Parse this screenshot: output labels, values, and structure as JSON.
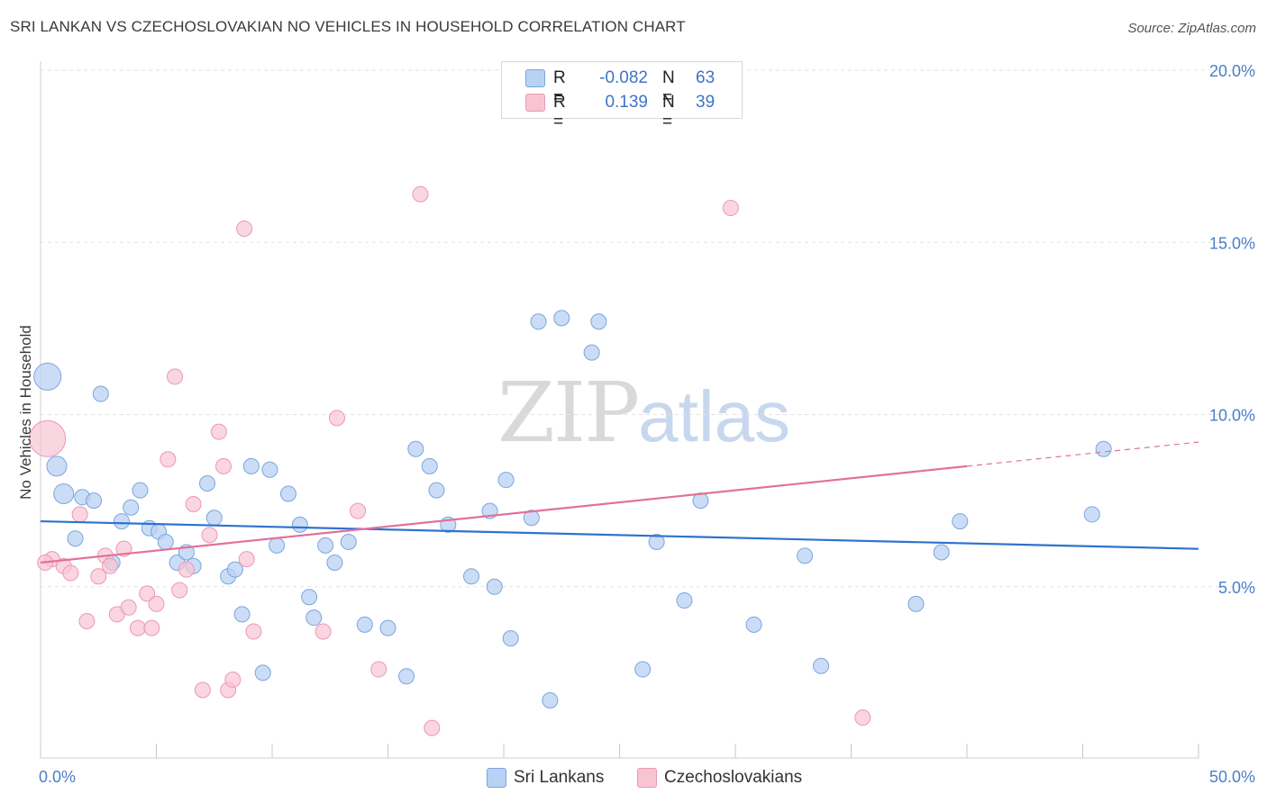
{
  "title": "SRI LANKAN VS CZECHOSLOVAKIAN NO VEHICLES IN HOUSEHOLD CORRELATION CHART",
  "source": "Source: ZipAtlas.com",
  "watermark": {
    "zip": "ZIP",
    "atlas": "atlas"
  },
  "colors": {
    "blue_fill": "#b9d1f3",
    "blue_stroke": "#7aa5de",
    "blue_line": "#2e72cf",
    "pink_fill": "#f8c4d4",
    "pink_stroke": "#ec98b3",
    "pink_line": "#e2709a",
    "grid": "#e2e2e2",
    "tick_text": "#4a7fc9"
  },
  "legend_top": [
    {
      "r_label": "R =",
      "r_value": "-0.082",
      "n_label": "N =",
      "n_value": "63"
    },
    {
      "r_label": "R =",
      "r_value": "0.139",
      "n_label": "N =",
      "n_value": "39"
    }
  ],
  "legend_bottom": [
    "Sri Lankans",
    "Czechoslovakians"
  ],
  "chart_data": {
    "type": "scatter",
    "title": "SRI LANKAN VS CZECHOSLOVAKIAN NO VEHICLES IN HOUSEHOLD CORRELATION CHART",
    "ylabel": "No Vehicles in Household",
    "xlabel": "",
    "xlim": [
      0,
      50
    ],
    "ylim": [
      0,
      20.5
    ],
    "x_tick_labels": [
      "0.0%",
      "50.0%"
    ],
    "y_ticks": [
      5,
      10,
      15,
      20
    ],
    "y_tick_labels": [
      "5.0%",
      "10.0%",
      "15.0%",
      "20.0%"
    ],
    "grid": true,
    "legend_position": "bottom",
    "series": [
      {
        "name": "Sri Lankans",
        "trend": {
          "x": [
            0,
            50
          ],
          "y": [
            6.9,
            6.1
          ]
        },
        "points": [
          [
            0.3,
            11.1
          ],
          [
            0.7,
            8.5
          ],
          [
            1.0,
            7.7
          ],
          [
            1.5,
            6.4
          ],
          [
            1.8,
            7.6
          ],
          [
            2.3,
            7.5
          ],
          [
            2.6,
            10.6
          ],
          [
            3.1,
            5.7
          ],
          [
            3.5,
            6.9
          ],
          [
            3.9,
            7.3
          ],
          [
            4.3,
            7.8
          ],
          [
            4.7,
            6.7
          ],
          [
            5.1,
            6.6
          ],
          [
            5.4,
            6.3
          ],
          [
            5.9,
            5.7
          ],
          [
            6.3,
            6.0
          ],
          [
            6.6,
            5.6
          ],
          [
            7.2,
            8.0
          ],
          [
            7.5,
            7.0
          ],
          [
            8.1,
            5.3
          ],
          [
            8.4,
            5.5
          ],
          [
            8.7,
            4.2
          ],
          [
            9.1,
            8.5
          ],
          [
            9.6,
            2.5
          ],
          [
            9.9,
            8.4
          ],
          [
            10.2,
            6.2
          ],
          [
            10.7,
            7.7
          ],
          [
            11.2,
            6.8
          ],
          [
            11.6,
            4.7
          ],
          [
            11.8,
            4.1
          ],
          [
            12.3,
            6.2
          ],
          [
            12.7,
            5.7
          ],
          [
            13.3,
            6.3
          ],
          [
            14.0,
            3.9
          ],
          [
            15.0,
            3.8
          ],
          [
            15.8,
            2.4
          ],
          [
            16.2,
            9.0
          ],
          [
            16.8,
            8.5
          ],
          [
            17.1,
            7.8
          ],
          [
            17.6,
            6.8
          ],
          [
            18.6,
            5.3
          ],
          [
            19.4,
            7.2
          ],
          [
            19.6,
            5.0
          ],
          [
            20.1,
            8.1
          ],
          [
            20.3,
            3.5
          ],
          [
            21.2,
            7.0
          ],
          [
            21.5,
            12.7
          ],
          [
            22.0,
            1.7
          ],
          [
            22.5,
            12.8
          ],
          [
            23.8,
            11.8
          ],
          [
            24.1,
            12.7
          ],
          [
            26.0,
            2.6
          ],
          [
            26.6,
            6.3
          ],
          [
            27.8,
            4.6
          ],
          [
            28.5,
            7.5
          ],
          [
            30.8,
            3.9
          ],
          [
            33.0,
            5.9
          ],
          [
            33.7,
            2.7
          ],
          [
            37.8,
            4.5
          ],
          [
            38.9,
            6.0
          ],
          [
            39.7,
            6.9
          ],
          [
            45.4,
            7.1
          ],
          [
            45.9,
            9.0
          ]
        ],
        "sizes_large": [
          [
            0.3,
            11.1
          ],
          [
            0.7,
            8.5
          ],
          [
            1.0,
            7.7
          ]
        ]
      },
      {
        "name": "Czechoslovakians",
        "trend": {
          "x": [
            0,
            40
          ],
          "y": [
            5.7,
            8.5
          ],
          "dashed_to": {
            "x": 50,
            "y": 9.2
          }
        },
        "points": [
          [
            0.3,
            9.3
          ],
          [
            0.5,
            5.8
          ],
          [
            1.0,
            5.6
          ],
          [
            1.3,
            5.4
          ],
          [
            1.7,
            7.1
          ],
          [
            2.0,
            4.0
          ],
          [
            2.5,
            5.3
          ],
          [
            2.8,
            5.9
          ],
          [
            3.0,
            5.6
          ],
          [
            3.3,
            4.2
          ],
          [
            3.6,
            6.1
          ],
          [
            3.8,
            4.4
          ],
          [
            4.2,
            3.8
          ],
          [
            4.6,
            4.8
          ],
          [
            4.8,
            3.8
          ],
          [
            5.0,
            4.5
          ],
          [
            5.5,
            8.7
          ],
          [
            5.8,
            11.1
          ],
          [
            6.0,
            4.9
          ],
          [
            6.3,
            5.5
          ],
          [
            6.6,
            7.4
          ],
          [
            7.0,
            2.0
          ],
          [
            7.3,
            6.5
          ],
          [
            7.7,
            9.5
          ],
          [
            7.9,
            8.5
          ],
          [
            8.1,
            2.0
          ],
          [
            8.3,
            2.3
          ],
          [
            8.8,
            15.4
          ],
          [
            8.9,
            5.8
          ],
          [
            9.2,
            3.7
          ],
          [
            12.2,
            3.7
          ],
          [
            12.8,
            9.9
          ],
          [
            13.7,
            7.2
          ],
          [
            14.6,
            2.6
          ],
          [
            16.4,
            16.4
          ],
          [
            16.9,
            0.9
          ],
          [
            29.8,
            16.0
          ],
          [
            35.5,
            1.2
          ],
          [
            0.2,
            5.7
          ]
        ],
        "sizes_large": [
          [
            0.3,
            9.3
          ]
        ]
      }
    ]
  }
}
